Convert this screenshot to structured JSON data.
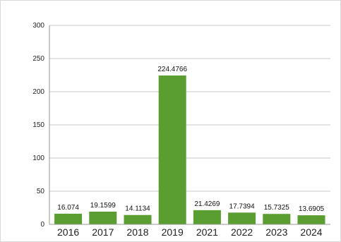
{
  "colors": {
    "bar": "#5a9e32",
    "grid": "#c8c8c8",
    "axis": "#9a9a9a"
  },
  "chart_data": {
    "type": "bar",
    "title": "",
    "xlabel": "",
    "ylabel": "",
    "categories": [
      "2016",
      "2017",
      "2018",
      "2019",
      "2021",
      "2022",
      "2023",
      "2024"
    ],
    "values": [
      16.074,
      19.1599,
      14.1134,
      224.4766,
      21.4269,
      17.7394,
      15.7325,
      13.6905
    ],
    "data_labels": [
      "16.074",
      "19.1599",
      "14.1134",
      "224.4766",
      "21.4269",
      "17.7394",
      "15.7325",
      "13.6905"
    ],
    "ylim": [
      0,
      300
    ],
    "yticks": [
      0,
      50,
      100,
      150,
      200,
      250,
      300
    ],
    "grid": true,
    "legend": "none"
  }
}
